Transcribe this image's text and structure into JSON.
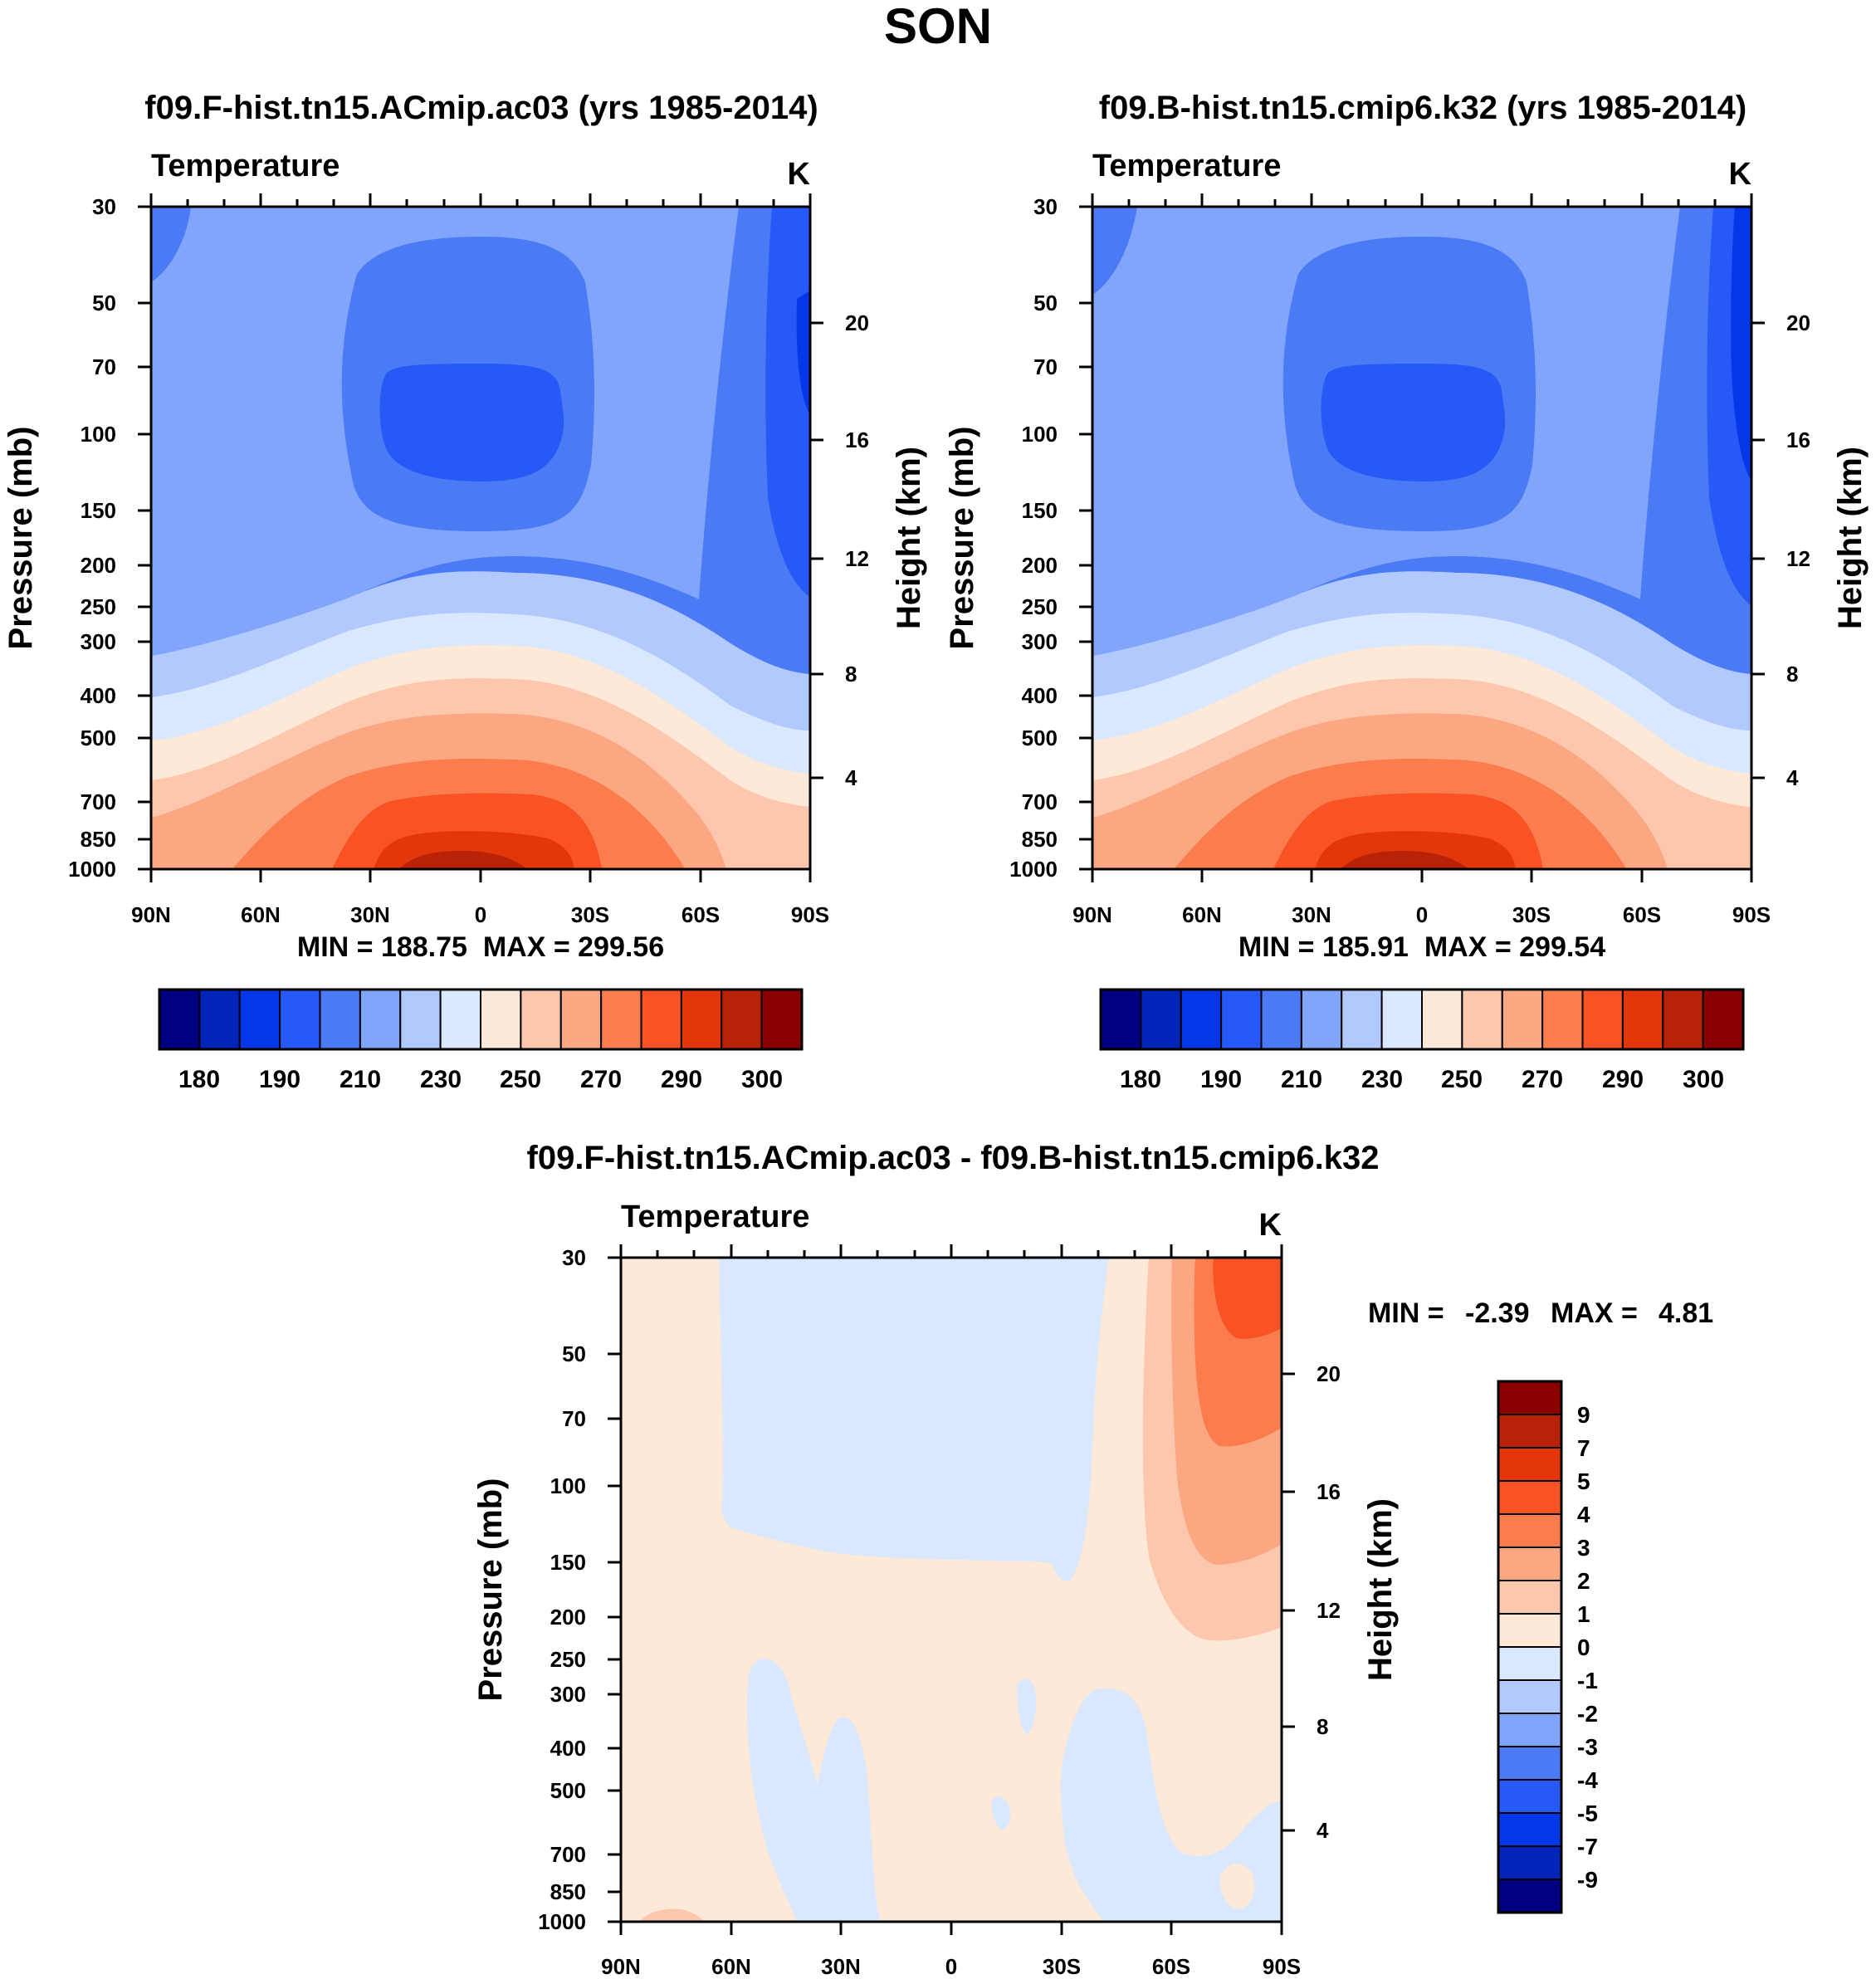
{
  "title": "SON",
  "colors": {
    "abs": [
      "#000080",
      "#0224b8",
      "#0437e8",
      "#2659f6",
      "#4b7af5",
      "#80a5fb",
      "#b2c9fd",
      "#d9e8fd",
      "#fee9d9",
      "#fdc7ae",
      "#fba882",
      "#fb7c4c",
      "#f95225",
      "#e3370b",
      "#b82308",
      "#8a0000"
    ],
    "diff": [
      "#000080",
      "#0224b8",
      "#0437e8",
      "#2659f6",
      "#4b7af5",
      "#80a5fb",
      "#b2c9fd",
      "#d9e8fd",
      "#fee9d9",
      "#fdc7ae",
      "#fba882",
      "#fb7c4c",
      "#f95225",
      "#e3370b",
      "#b82308",
      "#8a0000"
    ]
  },
  "panels": [
    {
      "title": "f09.F-hist.tn15.ACmip.ac03 (yrs 1985-2014)",
      "variable": "Temperature",
      "units": "K",
      "ylabel_left": "Pressure (mb)",
      "ylabel_right": "Height (km)",
      "pressure_ticks": [
        "30",
        "50",
        "70",
        "100",
        "150",
        "200",
        "250",
        "300",
        "400",
        "500",
        "700",
        "850",
        "1000"
      ],
      "height_ticks": [
        "20",
        "16",
        "12",
        "8",
        "4"
      ],
      "lat_ticks": [
        "90N",
        "60N",
        "30N",
        "0",
        "30S",
        "60S",
        "90S"
      ],
      "stats": "MIN = 188.75  MAX = 299.56",
      "colorbar_labels": [
        "180",
        "190",
        "210",
        "230",
        "250",
        "270",
        "290",
        "300"
      ]
    },
    {
      "title": "f09.B-hist.tn15.cmip6.k32 (yrs 1985-2014)",
      "variable": "Temperature",
      "units": "K",
      "ylabel_left": "Pressure (mb)",
      "ylabel_right": "Height (km)",
      "pressure_ticks": [
        "30",
        "50",
        "70",
        "100",
        "150",
        "200",
        "250",
        "300",
        "400",
        "500",
        "700",
        "850",
        "1000"
      ],
      "height_ticks": [
        "20",
        "16",
        "12",
        "8",
        "4"
      ],
      "lat_ticks": [
        "90N",
        "60N",
        "30N",
        "0",
        "30S",
        "60S",
        "90S"
      ],
      "stats": "MIN = 185.91  MAX = 299.54",
      "colorbar_labels": [
        "180",
        "190",
        "210",
        "230",
        "250",
        "270",
        "290",
        "300"
      ]
    },
    {
      "title": "f09.F-hist.tn15.ACmip.ac03 - f09.B-hist.tn15.cmip6.k32",
      "variable": "Temperature",
      "units": "K",
      "ylabel_left": "Pressure (mb)",
      "ylabel_right": "Height (km)",
      "pressure_ticks": [
        "30",
        "50",
        "70",
        "100",
        "150",
        "200",
        "250",
        "300",
        "400",
        "500",
        "700",
        "850",
        "1000"
      ],
      "height_ticks": [
        "20",
        "16",
        "12",
        "8",
        "4"
      ],
      "lat_ticks": [
        "90N",
        "60N",
        "30N",
        "0",
        "30S",
        "60S",
        "90S"
      ],
      "stats_min_label": "MIN =",
      "stats_min": "-2.39",
      "stats_max_label": "MAX =",
      "stats_max": "4.81",
      "colorbar_labels": [
        "9",
        "7",
        "5",
        "4",
        "3",
        "2",
        "1",
        "0",
        "-1",
        "-2",
        "-3",
        "-4",
        "-5",
        "-7",
        "-9"
      ]
    }
  ],
  "chart_data": [
    {
      "type": "heatmap",
      "title": "f09.F-hist.tn15.ACmip.ac03 (yrs 1985-2014)",
      "variable": "Temperature",
      "units": "K",
      "xlabel": "",
      "ylabel": "Pressure (mb)",
      "ylabel_right": "Height (km)",
      "x_ticks": [
        "90N",
        "60N",
        "30N",
        "0",
        "30S",
        "60S",
        "90S"
      ],
      "y_ticks_mb": [
        30,
        50,
        70,
        100,
        150,
        200,
        250,
        300,
        400,
        500,
        700,
        850,
        1000
      ],
      "y_right_ticks_km": [
        20,
        16,
        12,
        8,
        4
      ],
      "min": 188.75,
      "max": 299.56,
      "contour_levels": [
        180,
        185,
        190,
        200,
        210,
        220,
        230,
        240,
        250,
        260,
        270,
        280,
        290,
        295,
        300
      ],
      "features": "warm near-surface tropics (~290-300 K), cold tropical tropopause ~100 mb (~190 K), coldest at 90S upper levels"
    },
    {
      "type": "heatmap",
      "title": "f09.B-hist.tn15.cmip6.k32 (yrs 1985-2014)",
      "variable": "Temperature",
      "units": "K",
      "xlabel": "",
      "ylabel": "Pressure (mb)",
      "ylabel_right": "Height (km)",
      "x_ticks": [
        "90N",
        "60N",
        "30N",
        "0",
        "30S",
        "60S",
        "90S"
      ],
      "y_ticks_mb": [
        30,
        50,
        70,
        100,
        150,
        200,
        250,
        300,
        400,
        500,
        700,
        850,
        1000
      ],
      "y_right_ticks_km": [
        20,
        16,
        12,
        8,
        4
      ],
      "min": 185.91,
      "max": 299.54,
      "contour_levels": [
        180,
        185,
        190,
        200,
        210,
        220,
        230,
        240,
        250,
        260,
        270,
        280,
        290,
        295,
        300
      ],
      "features": "nearly identical to F-hist panel; slightly colder polar stratosphere at 90S"
    },
    {
      "type": "heatmap",
      "title": "f09.F-hist.tn15.ACmip.ac03 - f09.B-hist.tn15.cmip6.k32",
      "variable": "Temperature difference",
      "units": "K",
      "xlabel": "",
      "ylabel": "Pressure (mb)",
      "ylabel_right": "Height (km)",
      "x_ticks": [
        "90N",
        "60N",
        "30N",
        "0",
        "30S",
        "60S",
        "90S"
      ],
      "y_ticks_mb": [
        30,
        50,
        70,
        100,
        150,
        200,
        250,
        300,
        400,
        500,
        700,
        850,
        1000
      ],
      "y_right_ticks_km": [
        20,
        16,
        12,
        8,
        4
      ],
      "min": -2.39,
      "max": 4.81,
      "contour_levels": [
        -9,
        -7,
        -5,
        -4,
        -3,
        -2,
        -1,
        0,
        1,
        2,
        3,
        4,
        5,
        7,
        9
      ],
      "features": "0 to 1 K over most of domain; -1 to 0 K in tropical stratosphere 30-100 mb; positive 1-4 K in southern high-latitude stratosphere"
    }
  ]
}
